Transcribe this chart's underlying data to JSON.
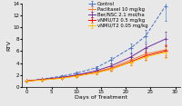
{
  "title": "",
  "xlabel": "Days of Treatment",
  "ylabel": "RTV",
  "xlim": [
    -1,
    31
  ],
  "ylim": [
    0,
    14
  ],
  "yticks": [
    0,
    2,
    4,
    6,
    8,
    10,
    12,
    14
  ],
  "xticks": [
    0,
    5,
    10,
    15,
    20,
    25,
    30
  ],
  "series": [
    {
      "label": "Control",
      "color": "#4472c4",
      "linestyle": "--",
      "marker": "+",
      "x": [
        0,
        3,
        7,
        10,
        14,
        17,
        21,
        24,
        28
      ],
      "y": [
        1.0,
        1.3,
        1.8,
        2.3,
        3.2,
        4.5,
        6.5,
        8.5,
        13.5
      ],
      "yerr": [
        0.05,
        0.1,
        0.15,
        0.2,
        0.3,
        0.5,
        0.7,
        1.0,
        2.5
      ]
    },
    {
      "label": "Paclitaxel 10 mg/kg",
      "color": "#ed7d31",
      "linestyle": "-",
      "marker": "+",
      "x": [
        0,
        3,
        7,
        10,
        14,
        17,
        21,
        24,
        28
      ],
      "y": [
        1.0,
        1.2,
        1.5,
        1.9,
        2.5,
        3.2,
        4.5,
        5.5,
        6.2
      ],
      "yerr": [
        0.05,
        0.1,
        0.15,
        0.2,
        0.25,
        0.4,
        0.6,
        0.7,
        0.9
      ]
    },
    {
      "label": "Ber/NSC 2.1 mol/ha",
      "color": "#7030a0",
      "linestyle": "-",
      "marker": "+",
      "x": [
        0,
        3,
        7,
        10,
        14,
        17,
        21,
        24,
        28
      ],
      "y": [
        1.0,
        1.25,
        1.6,
        2.0,
        2.7,
        3.5,
        5.0,
        6.5,
        8.0
      ],
      "yerr": [
        0.05,
        0.1,
        0.15,
        0.2,
        0.3,
        0.4,
        0.6,
        0.8,
        1.2
      ]
    },
    {
      "label": "vNMU/T2 0.5 mg/kg",
      "color": "#ff0000",
      "linestyle": "-",
      "marker": "+",
      "x": [
        0,
        3,
        7,
        10,
        14,
        17,
        21,
        24,
        28
      ],
      "y": [
        1.0,
        1.2,
        1.5,
        1.85,
        2.4,
        3.0,
        4.2,
        5.2,
        6.0
      ],
      "yerr": [
        0.05,
        0.1,
        0.12,
        0.18,
        0.25,
        0.35,
        0.5,
        0.7,
        1.0
      ]
    },
    {
      "label": "vNMU/T2 0.05 mg/kg",
      "color": "#ffc000",
      "linestyle": "-",
      "marker": "+",
      "x": [
        0,
        3,
        7,
        10,
        14,
        17,
        21,
        24,
        28
      ],
      "y": [
        1.0,
        1.15,
        1.45,
        1.8,
        2.35,
        2.95,
        4.1,
        5.0,
        5.8
      ],
      "yerr": [
        0.05,
        0.1,
        0.12,
        0.18,
        0.22,
        0.32,
        0.48,
        0.65,
        0.9
      ]
    }
  ],
  "legend_fontsize": 3.8,
  "axis_fontsize": 4.5,
  "tick_fontsize": 4.0,
  "linewidth": 0.7,
  "markersize": 2.5,
  "capsize": 1.0,
  "elinewidth": 0.4,
  "background_color": "#e8e8e8"
}
